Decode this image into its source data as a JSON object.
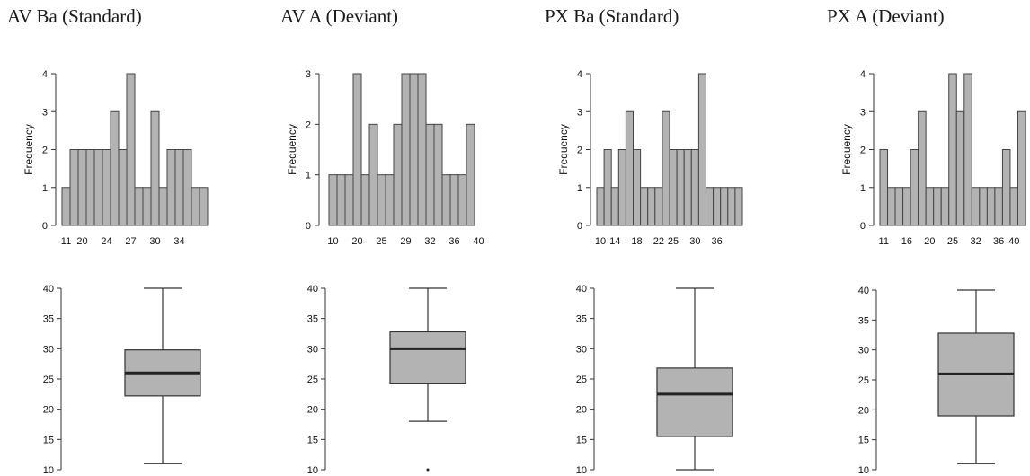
{
  "panels": [
    {
      "title": "AV Ba (Standard)"
    },
    {
      "title": "AV A (Deviant)"
    },
    {
      "title": "PX Ba (Standard)"
    },
    {
      "title": "PX A (Deviant)"
    }
  ],
  "chart_data": [
    {
      "type": "bar",
      "panel": "AV Ba (Standard)",
      "ylabel": "Frequency",
      "ylim": [
        0,
        4
      ],
      "yticks": [
        0,
        1,
        2,
        3,
        4
      ],
      "xtick_labels": [
        "11",
        "20",
        "24",
        "27",
        "30",
        "34"
      ],
      "xtick_bins": [
        0,
        2,
        5,
        8,
        11,
        14
      ],
      "values": [
        1,
        2,
        2,
        2,
        2,
        2,
        3,
        2,
        4,
        1,
        1,
        3,
        1,
        2,
        2,
        2,
        1,
        1
      ]
    },
    {
      "type": "bar",
      "panel": "AV A (Deviant)",
      "ylabel": "Frequency",
      "ylim": [
        0,
        3
      ],
      "yticks": [
        0,
        1,
        2,
        3
      ],
      "xtick_labels": [
        "10",
        "20",
        "25",
        "29",
        "32",
        "36",
        "40"
      ],
      "xtick_bins": [
        0,
        3,
        6,
        9,
        12,
        15,
        18
      ],
      "values": [
        1,
        1,
        1,
        3,
        1,
        2,
        1,
        1,
        2,
        3,
        3,
        3,
        2,
        2,
        1,
        1,
        1,
        2
      ]
    },
    {
      "type": "bar",
      "panel": "PX Ba (Standard)",
      "ylabel": "Frequency",
      "ylim": [
        0,
        4
      ],
      "yticks": [
        0,
        1,
        2,
        3,
        4
      ],
      "xtick_labels": [
        "10",
        "14",
        "18",
        "22",
        "25",
        "30",
        "36"
      ],
      "xtick_bins": [
        0,
        2,
        5,
        8,
        10,
        13,
        16
      ],
      "values": [
        1,
        2,
        1,
        2,
        3,
        2,
        1,
        1,
        1,
        3,
        2,
        2,
        2,
        2,
        4,
        1,
        1,
        1,
        1,
        1
      ]
    },
    {
      "type": "bar",
      "panel": "PX A (Deviant)",
      "ylabel": "Frequency",
      "ylim": [
        0,
        4
      ],
      "yticks": [
        0,
        1,
        2,
        3,
        4
      ],
      "xtick_labels": [
        "11",
        "16",
        "20",
        "25",
        "32",
        "36",
        "40"
      ],
      "xtick_bins": [
        0,
        3,
        6,
        9,
        12,
        15,
        17
      ],
      "values": [
        2,
        1,
        1,
        1,
        2,
        3,
        1,
        1,
        1,
        4,
        3,
        4,
        1,
        1,
        1,
        1,
        2,
        1,
        3
      ]
    },
    {
      "type": "box",
      "panel": "AV Ba (Standard)",
      "ylim": [
        10,
        40
      ],
      "yticks": [
        10,
        15,
        20,
        25,
        30,
        35,
        40
      ],
      "whisker_low": 11,
      "q1": 22.2,
      "median": 26,
      "q3": 29.8,
      "whisker_high": 40,
      "outliers": []
    },
    {
      "type": "box",
      "panel": "AV A (Deviant)",
      "ylim": [
        10,
        40
      ],
      "yticks": [
        10,
        15,
        20,
        25,
        30,
        35,
        40
      ],
      "whisker_low": 18,
      "q1": 24.2,
      "median": 30,
      "q3": 32.8,
      "whisker_high": 40,
      "outliers": [
        10
      ]
    },
    {
      "type": "box",
      "panel": "PX Ba (Standard)",
      "ylim": [
        10,
        40
      ],
      "yticks": [
        10,
        15,
        20,
        25,
        30,
        35,
        40
      ],
      "whisker_low": 10,
      "q1": 15.5,
      "median": 22.5,
      "q3": 26.8,
      "whisker_high": 40,
      "outliers": []
    },
    {
      "type": "box",
      "panel": "PX A (Deviant)",
      "ylim": [
        10,
        40
      ],
      "yticks": [
        10,
        15,
        20,
        25,
        30,
        35,
        40
      ],
      "whisker_low": 11,
      "q1": 19,
      "median": 26,
      "q3": 32.8,
      "whisker_high": 40,
      "outliers": []
    }
  ]
}
